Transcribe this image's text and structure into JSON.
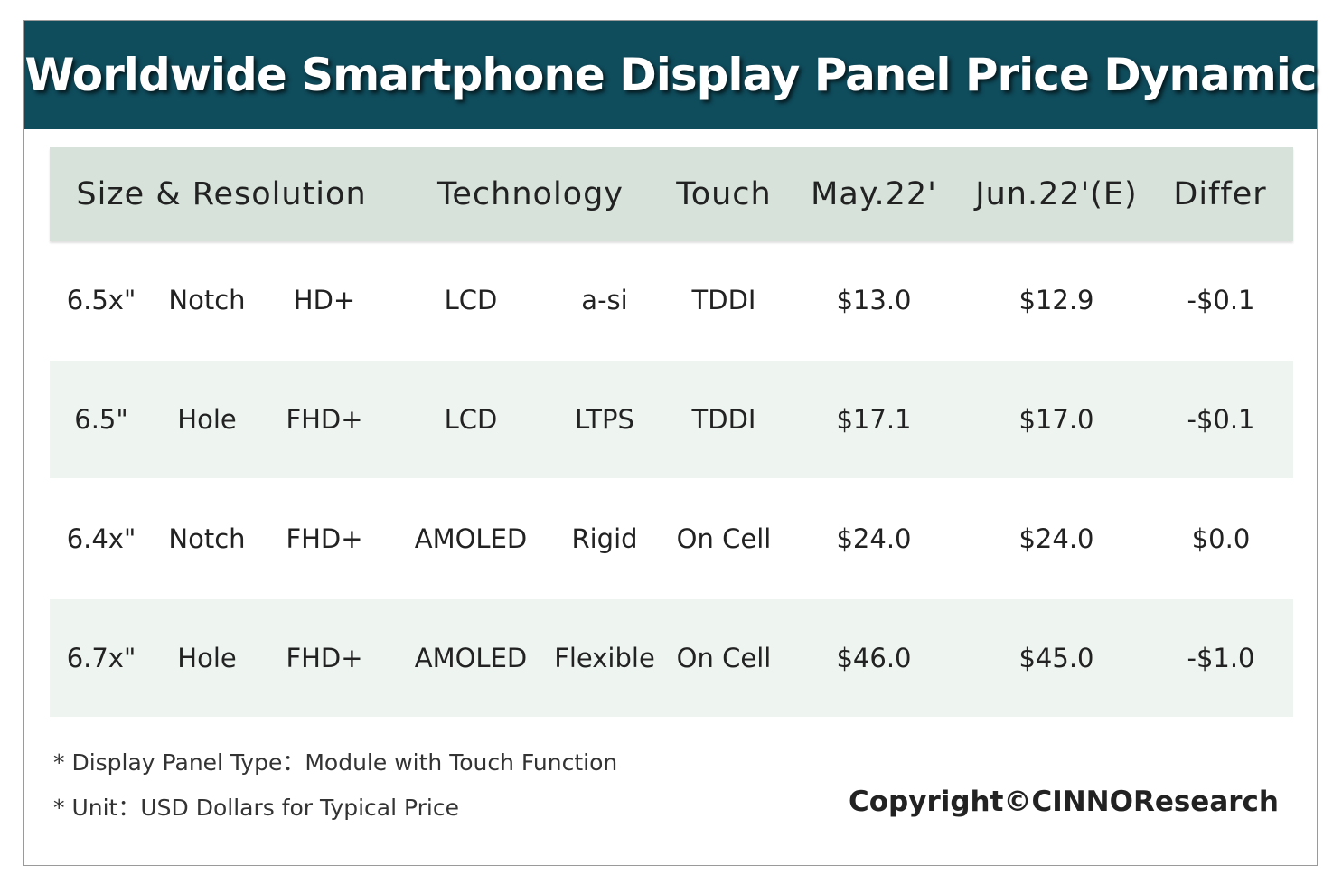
{
  "title": "Worldwide Smartphone Display Panel Price Dynamic",
  "chart_data": {
    "type": "table",
    "columns": [
      "Size & Resolution",
      "Technology",
      "Touch",
      "May.22'",
      "Jun.22'(E)",
      "Differ"
    ],
    "rows": [
      {
        "size": "6.5x\"",
        "shape": "Notch",
        "resolution": "HD+",
        "display": "LCD",
        "backplane": "a-si",
        "touch": "TDDI",
        "may": "$13.0",
        "jun": "$12.9",
        "differ": "-$0.1"
      },
      {
        "size": "6.5\"",
        "shape": "Hole",
        "resolution": "FHD+",
        "display": "LCD",
        "backplane": "LTPS",
        "touch": "TDDI",
        "may": "$17.1",
        "jun": "$17.0",
        "differ": "-$0.1"
      },
      {
        "size": "6.4x\"",
        "shape": "Notch",
        "resolution": "FHD+",
        "display": "AMOLED",
        "backplane": "Rigid",
        "touch": "On Cell",
        "may": "$24.0",
        "jun": "$24.0",
        "differ": "$0.0"
      },
      {
        "size": "6.7x\"",
        "shape": "Hole",
        "resolution": "FHD+",
        "display": "AMOLED",
        "backplane": "Flexible",
        "touch": "On Cell",
        "may": "$46.0",
        "jun": "$45.0",
        "differ": "-$1.0"
      }
    ]
  },
  "notes": [
    "* Display Panel Type：Module with Touch Function",
    "* Unit：USD Dollars for Typical Price"
  ],
  "copyright": "Copyright©CINNOResearch",
  "colors": {
    "banner": "#0f4c5c",
    "header_row": "#d7e3da",
    "shaded_row": "#eef4f0"
  }
}
